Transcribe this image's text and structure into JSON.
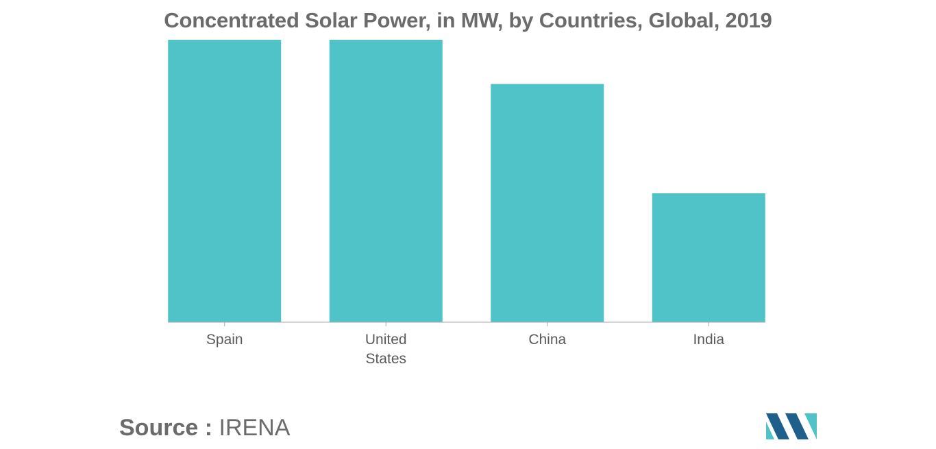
{
  "chart_data": {
    "type": "bar",
    "title": "Concentrated Solar Power, in MW, by Countries, Global, 2019",
    "categories": [
      [
        "Spain"
      ],
      [
        "United",
        "States"
      ],
      [
        "China"
      ],
      [
        "India"
      ]
    ],
    "values": [
      2300,
      2300,
      1940,
      1050
    ],
    "ylim": [
      0,
      2300
    ],
    "xlabel": "",
    "ylabel": "",
    "grid": false,
    "legend": "none",
    "bar_color": "#50c3c9",
    "axis_color": "#a8a8a8"
  },
  "source": {
    "label": "Source :",
    "value": "IRENA"
  },
  "colors": {
    "text": "#6b6b6b",
    "logo_dark": "#1f5f8b",
    "logo_light": "#50c3c9"
  }
}
